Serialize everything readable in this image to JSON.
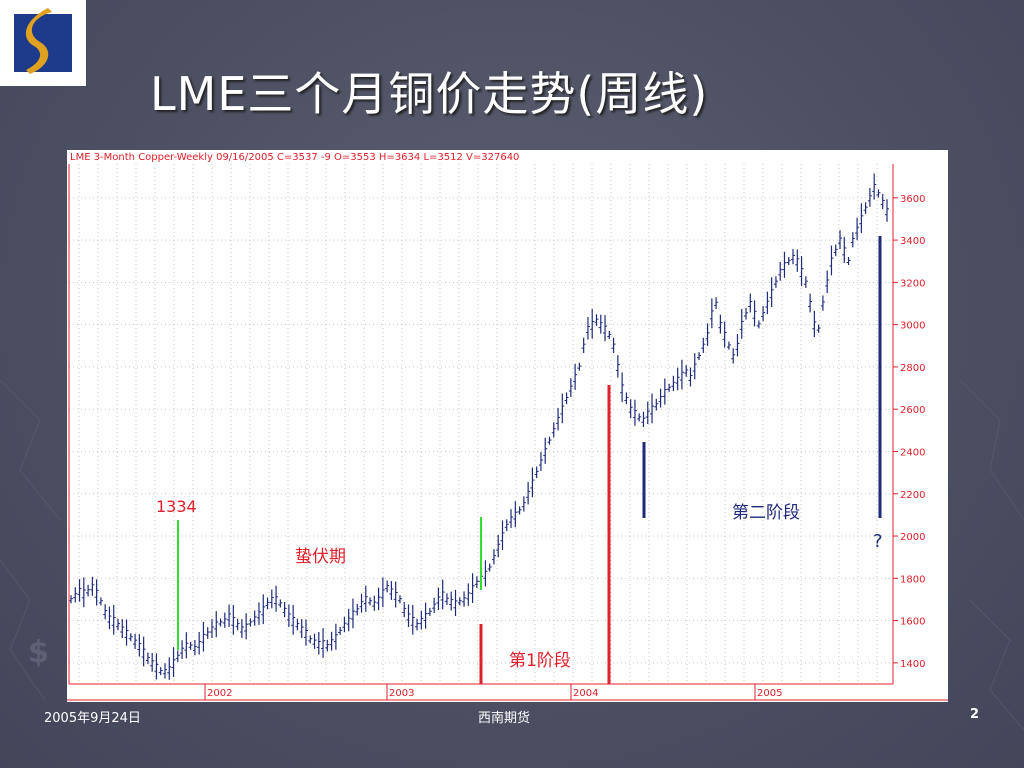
{
  "slide": {
    "title": "LME三个月铜价走势(周线)",
    "footer_date": "2005年9月24日",
    "footer_center": "西南期货",
    "page_number": "2"
  },
  "colors": {
    "background": "#4d5063",
    "logo_blue": "#1e3a8a",
    "logo_gold": "#e0a020",
    "candle_bar": "#1f2a7a",
    "axis_red": "#e0202a",
    "grid": "#c8c8c8",
    "marker_green": "#33dd33",
    "marker_red": "#e0202a",
    "marker_navy": "#1f2a7a"
  },
  "chart_data": {
    "type": "line",
    "header": "LME 3-Month Copper-Weekly   09/16/2005  C=3537  -9  O=3553  H=3634  L=3512  V=327640",
    "x_ticks": [
      "2002",
      "2003",
      "2004",
      "2005"
    ],
    "y_ticks": [
      1400,
      1600,
      1800,
      2000,
      2200,
      2400,
      2600,
      2800,
      3000,
      3200,
      3400,
      3600
    ],
    "ylim": [
      1300,
      3760
    ],
    "series": [
      {
        "values": [
          1700,
          1720,
          1740,
          1730,
          1740,
          1760,
          1730,
          1690,
          1640,
          1610,
          1600,
          1580,
          1560,
          1540,
          1520,
          1500,
          1480,
          1450,
          1420,
          1400,
          1380,
          1360,
          1360,
          1370,
          1400,
          1430,
          1460,
          1480,
          1480,
          1470,
          1490,
          1520,
          1540,
          1560,
          1580,
          1590,
          1600,
          1620,
          1600,
          1580,
          1560,
          1570,
          1590,
          1610,
          1630,
          1650,
          1680,
          1700,
          1700,
          1680,
          1650,
          1620,
          1600,
          1580,
          1560,
          1540,
          1510,
          1500,
          1490,
          1490,
          1480,
          1500,
          1520,
          1550,
          1580,
          1600,
          1630,
          1650,
          1680,
          1700,
          1690,
          1680,
          1700,
          1730,
          1760,
          1740,
          1720,
          1700,
          1650,
          1620,
          1600,
          1580,
          1600,
          1620,
          1640,
          1670,
          1700,
          1720,
          1700,
          1690,
          1680,
          1690,
          1700,
          1720,
          1750,
          1780,
          1800,
          1820,
          1850,
          1900,
          1950,
          2000,
          2050,
          2080,
          2100,
          2120,
          2150,
          2200,
          2250,
          2300,
          2350,
          2400,
          2450,
          2500,
          2550,
          2600,
          2650,
          2700,
          2750,
          2800,
          2900,
          2980,
          3000,
          3020,
          3000,
          2980,
          2950,
          2900,
          2800,
          2700,
          2650,
          2600,
          2580,
          2560,
          2550,
          2580,
          2600,
          2620,
          2650,
          2680,
          2700,
          2720,
          2740,
          2760,
          2780,
          2750,
          2800,
          2850,
          2900,
          2950,
          3050,
          3100,
          3000,
          2950,
          2900,
          2850,
          2900,
          3000,
          3050,
          3100,
          3050,
          3000,
          3050,
          3100,
          3150,
          3200,
          3250,
          3280,
          3300,
          3320,
          3300,
          3250,
          3200,
          3100,
          3000,
          2980,
          3100,
          3200,
          3300,
          3350,
          3400,
          3350,
          3300,
          3400,
          3450,
          3500,
          3550,
          3600,
          3650,
          3620,
          3580,
          3537
        ]
      }
    ],
    "annotations": [
      {
        "text": "1334",
        "color": "#e0202a"
      },
      {
        "text": "蛰伏期",
        "color": "#e0202a"
      },
      {
        "text": "第1阶段",
        "color": "#e0202a"
      },
      {
        "text": "第二阶段",
        "color": "#1f2a7a"
      },
      {
        "text": "?",
        "color": "#1f2a7a"
      }
    ]
  }
}
